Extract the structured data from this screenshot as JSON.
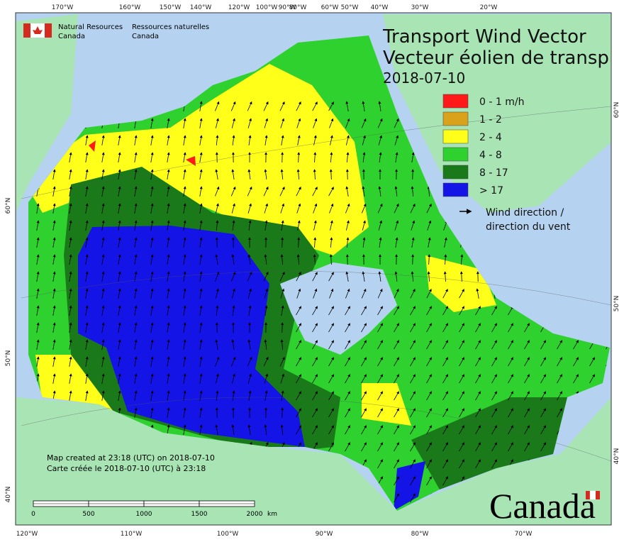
{
  "logo": {
    "en_line1": "Natural Resources",
    "en_line2": "Canada",
    "fr_line1": "Ressources naturelles",
    "fr_line2": "Canada"
  },
  "title": {
    "line1": "Transport Wind Vector",
    "line2": "Vecteur éolien de transp",
    "date": "2018-07-10"
  },
  "legend": {
    "items": [
      {
        "label": "0 - 1 m/h",
        "color": "#ff1a1a"
      },
      {
        "label": "1 - 2",
        "color": "#d9a21a"
      },
      {
        "label": "2 - 4",
        "color": "#ffff1a"
      },
      {
        "label": "4 - 8",
        "color": "#2ed12e"
      },
      {
        "label": "8 - 17",
        "color": "#1a7a1a"
      },
      {
        "label": "> 17",
        "color": "#1414e6"
      }
    ],
    "wind_line1": "Wind direction /",
    "wind_line2": "direction du vent"
  },
  "top_ticks": [
    "170°W",
    "160°W",
    "150°W",
    "140°W",
    "120°W",
    "100°W",
    "90°W",
    "80°W",
    "60°W",
    "50°W",
    "40°W",
    "30°W",
    "20°W"
  ],
  "bottom_ticks": [
    "120°W",
    "110°W",
    "100°W",
    "90°W",
    "80°W",
    "70°W"
  ],
  "left_ticks": [
    "60°N",
    "50°N",
    "40°N"
  ],
  "right_ticks": [
    "60°N",
    "50°N",
    "40°N"
  ],
  "credits": {
    "line1": "Map created at 23:18 (UTC) on 2018-07-10",
    "line2": "Carte créée le 2018-07-10 (UTC) à 23:18"
  },
  "scale": {
    "labels": [
      "0",
      "500",
      "1000",
      "1500",
      "2000"
    ],
    "unit": "km"
  },
  "wordmark": "Canada"
}
